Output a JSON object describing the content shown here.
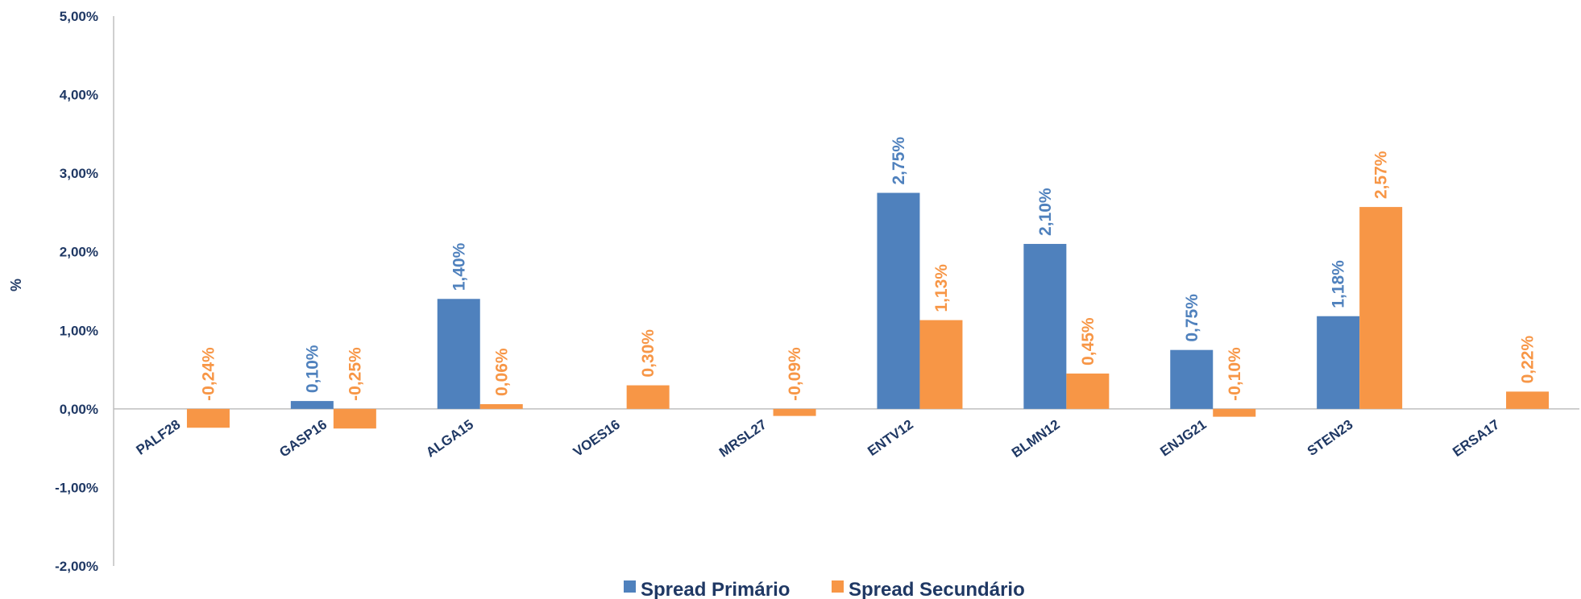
{
  "chart_data": {
    "type": "bar",
    "title": "",
    "xlabel": "",
    "ylabel": "%",
    "ylim": [
      -0.02,
      0.05
    ],
    "ytick_values": [
      -0.02,
      -0.01,
      0,
      0.01,
      0.02,
      0.03,
      0.04,
      0.05
    ],
    "ytick_labels": [
      "-2,00%",
      "-1,00%",
      "0,00%",
      "1,00%",
      "2,00%",
      "3,00%",
      "4,00%",
      "5,00%"
    ],
    "grid": false,
    "legend_position": "bottom-center",
    "categories": [
      "PALF28",
      "GASP16",
      "ALGA15",
      "VOES16",
      "MRSL27",
      "ENTV12",
      "BLMN12",
      "ENJG21",
      "STEN23",
      "ERSA17"
    ],
    "series": [
      {
        "name": "Spread Primário",
        "color": "#4f81bd",
        "values": [
          null,
          0.001,
          0.014,
          null,
          null,
          0.0275,
          0.021,
          0.0075,
          0.0118,
          null
        ],
        "labels": [
          null,
          "0,10%",
          "1,40%",
          null,
          null,
          "2,75%",
          "2,10%",
          "0,75%",
          "1,18%",
          null
        ]
      },
      {
        "name": "Spread Secundário",
        "color": "#f79646",
        "values": [
          -0.0024,
          -0.0025,
          0.0006,
          0.003,
          -0.0009,
          0.0113,
          0.0045,
          -0.001,
          0.0257,
          0.0022
        ],
        "labels": [
          "-0,24%",
          "-0,25%",
          "0,06%",
          "0,30%",
          "-0,09%",
          "1,13%",
          "0,45%",
          "-0,10%",
          "2,57%",
          "0,22%"
        ]
      }
    ]
  }
}
